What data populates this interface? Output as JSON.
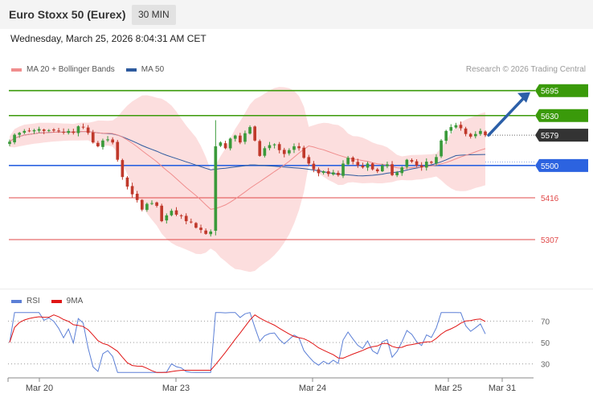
{
  "header": {
    "title": "Euro Stoxx 50 (Eurex)",
    "interval": "30 MIN"
  },
  "datetime": "Wednesday, March 25, 2026 8:04:31 AM CET",
  "legend": [
    {
      "label": "MA 20 + Bollinger Bands",
      "color": "#f08d8d"
    },
    {
      "label": "MA 50",
      "color": "#2d5a9e"
    }
  ],
  "credit": "Research © 2026 Trading Central",
  "rsi_legend": [
    {
      "label": "RSI",
      "color": "#5b7fd6"
    },
    {
      "label": "9MA",
      "color": "#e01515"
    }
  ],
  "colors": {
    "bull": "#3a9a3a",
    "bear": "#c0392b",
    "resistance": "#3a9a0a",
    "support": "#2c63e0",
    "minor_support": "#e04848",
    "last": "#333333",
    "projection": "#2b5fa8"
  },
  "chart_data": [
    {
      "type": "candlestick",
      "title": "",
      "ylim": [
        5240,
        5730
      ],
      "x_tick_labels": [
        "Mar 20",
        "Mar 23",
        "Mar 24",
        "Mar 25",
        "Mar 31"
      ],
      "levels": [
        {
          "value": 5695,
          "label": "5695",
          "kind": "resistance"
        },
        {
          "value": 5630,
          "label": "5630",
          "kind": "resistance"
        },
        {
          "value": 5579,
          "label": "5579",
          "kind": "last"
        },
        {
          "value": 5500,
          "label": "5500",
          "kind": "support"
        },
        {
          "value": 5416,
          "label": "5416",
          "kind": "minor_support"
        },
        {
          "value": 5307,
          "label": "5307",
          "kind": "minor_support"
        }
      ],
      "close": [
        5562,
        5580,
        5585,
        5590,
        5589,
        5592,
        5595,
        5590,
        5592,
        5591,
        5589,
        5586,
        5590,
        5585,
        5602,
        5600,
        5585,
        5560,
        5550,
        5565,
        5568,
        5560,
        5515,
        5470,
        5445,
        5425,
        5410,
        5385,
        5400,
        5402,
        5395,
        5355,
        5370,
        5382,
        5372,
        5368,
        5355,
        5352,
        5338,
        5332,
        5322,
        5328,
        5550,
        5560,
        5545,
        5570,
        5578,
        5560,
        5584,
        5600,
        5565,
        5525,
        5545,
        5553,
        5555,
        5540,
        5530,
        5540,
        5550,
        5545,
        5520,
        5505,
        5490,
        5480,
        5485,
        5478,
        5482,
        5475,
        5505,
        5520,
        5510,
        5500,
        5495,
        5505,
        5490,
        5485,
        5500,
        5503,
        5475,
        5482,
        5495,
        5515,
        5510,
        5500,
        5495,
        5510,
        5507,
        5522,
        5565,
        5590,
        5600,
        5605,
        5597,
        5582,
        5575,
        5582,
        5590,
        5579
      ]
    },
    {
      "type": "line",
      "title": "RSI",
      "ylim": [
        20,
        80
      ],
      "y_tick_labels": [
        "70",
        "50",
        "30"
      ],
      "series": [
        {
          "name": "RSI",
          "values": []
        },
        {
          "name": "9MA",
          "values": []
        }
      ]
    }
  ]
}
